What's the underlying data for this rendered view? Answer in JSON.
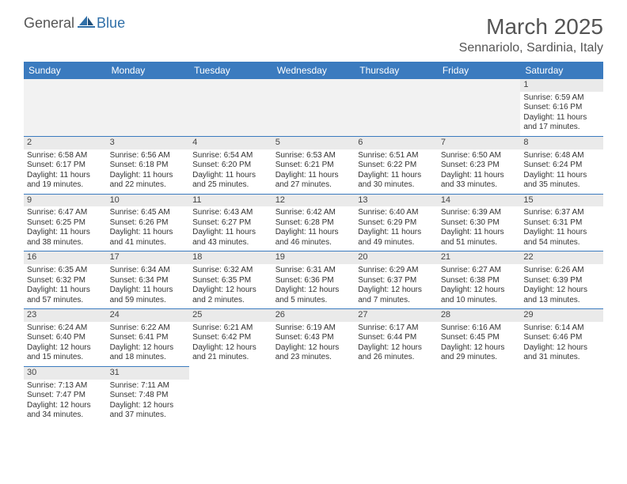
{
  "brand": {
    "part1": "General",
    "part2": "Blue"
  },
  "title": "March 2025",
  "location": "Sennariolo, Sardinia, Italy",
  "header_bg": "#3b7bbf",
  "header_text_color": "#ffffff",
  "daynum_bg": "#eaeaea",
  "border_color": "#3b7bbf",
  "weekdays": [
    "Sunday",
    "Monday",
    "Tuesday",
    "Wednesday",
    "Thursday",
    "Friday",
    "Saturday"
  ],
  "weeks": [
    [
      null,
      null,
      null,
      null,
      null,
      null,
      {
        "n": "1",
        "sunrise": "6:59 AM",
        "sunset": "6:16 PM",
        "daylight": "11 hours and 17 minutes."
      }
    ],
    [
      {
        "n": "2",
        "sunrise": "6:58 AM",
        "sunset": "6:17 PM",
        "daylight": "11 hours and 19 minutes."
      },
      {
        "n": "3",
        "sunrise": "6:56 AM",
        "sunset": "6:18 PM",
        "daylight": "11 hours and 22 minutes."
      },
      {
        "n": "4",
        "sunrise": "6:54 AM",
        "sunset": "6:20 PM",
        "daylight": "11 hours and 25 minutes."
      },
      {
        "n": "5",
        "sunrise": "6:53 AM",
        "sunset": "6:21 PM",
        "daylight": "11 hours and 27 minutes."
      },
      {
        "n": "6",
        "sunrise": "6:51 AM",
        "sunset": "6:22 PM",
        "daylight": "11 hours and 30 minutes."
      },
      {
        "n": "7",
        "sunrise": "6:50 AM",
        "sunset": "6:23 PM",
        "daylight": "11 hours and 33 minutes."
      },
      {
        "n": "8",
        "sunrise": "6:48 AM",
        "sunset": "6:24 PM",
        "daylight": "11 hours and 35 minutes."
      }
    ],
    [
      {
        "n": "9",
        "sunrise": "6:47 AM",
        "sunset": "6:25 PM",
        "daylight": "11 hours and 38 minutes."
      },
      {
        "n": "10",
        "sunrise": "6:45 AM",
        "sunset": "6:26 PM",
        "daylight": "11 hours and 41 minutes."
      },
      {
        "n": "11",
        "sunrise": "6:43 AM",
        "sunset": "6:27 PM",
        "daylight": "11 hours and 43 minutes."
      },
      {
        "n": "12",
        "sunrise": "6:42 AM",
        "sunset": "6:28 PM",
        "daylight": "11 hours and 46 minutes."
      },
      {
        "n": "13",
        "sunrise": "6:40 AM",
        "sunset": "6:29 PM",
        "daylight": "11 hours and 49 minutes."
      },
      {
        "n": "14",
        "sunrise": "6:39 AM",
        "sunset": "6:30 PM",
        "daylight": "11 hours and 51 minutes."
      },
      {
        "n": "15",
        "sunrise": "6:37 AM",
        "sunset": "6:31 PM",
        "daylight": "11 hours and 54 minutes."
      }
    ],
    [
      {
        "n": "16",
        "sunrise": "6:35 AM",
        "sunset": "6:32 PM",
        "daylight": "11 hours and 57 minutes."
      },
      {
        "n": "17",
        "sunrise": "6:34 AM",
        "sunset": "6:34 PM",
        "daylight": "11 hours and 59 minutes."
      },
      {
        "n": "18",
        "sunrise": "6:32 AM",
        "sunset": "6:35 PM",
        "daylight": "12 hours and 2 minutes."
      },
      {
        "n": "19",
        "sunrise": "6:31 AM",
        "sunset": "6:36 PM",
        "daylight": "12 hours and 5 minutes."
      },
      {
        "n": "20",
        "sunrise": "6:29 AM",
        "sunset": "6:37 PM",
        "daylight": "12 hours and 7 minutes."
      },
      {
        "n": "21",
        "sunrise": "6:27 AM",
        "sunset": "6:38 PM",
        "daylight": "12 hours and 10 minutes."
      },
      {
        "n": "22",
        "sunrise": "6:26 AM",
        "sunset": "6:39 PM",
        "daylight": "12 hours and 13 minutes."
      }
    ],
    [
      {
        "n": "23",
        "sunrise": "6:24 AM",
        "sunset": "6:40 PM",
        "daylight": "12 hours and 15 minutes."
      },
      {
        "n": "24",
        "sunrise": "6:22 AM",
        "sunset": "6:41 PM",
        "daylight": "12 hours and 18 minutes."
      },
      {
        "n": "25",
        "sunrise": "6:21 AM",
        "sunset": "6:42 PM",
        "daylight": "12 hours and 21 minutes."
      },
      {
        "n": "26",
        "sunrise": "6:19 AM",
        "sunset": "6:43 PM",
        "daylight": "12 hours and 23 minutes."
      },
      {
        "n": "27",
        "sunrise": "6:17 AM",
        "sunset": "6:44 PM",
        "daylight": "12 hours and 26 minutes."
      },
      {
        "n": "28",
        "sunrise": "6:16 AM",
        "sunset": "6:45 PM",
        "daylight": "12 hours and 29 minutes."
      },
      {
        "n": "29",
        "sunrise": "6:14 AM",
        "sunset": "6:46 PM",
        "daylight": "12 hours and 31 minutes."
      }
    ],
    [
      {
        "n": "30",
        "sunrise": "7:13 AM",
        "sunset": "7:47 PM",
        "daylight": "12 hours and 34 minutes."
      },
      {
        "n": "31",
        "sunrise": "7:11 AM",
        "sunset": "7:48 PM",
        "daylight": "12 hours and 37 minutes."
      },
      null,
      null,
      null,
      null,
      null
    ]
  ],
  "labels": {
    "sunrise": "Sunrise:",
    "sunset": "Sunset:",
    "daylight": "Daylight:"
  }
}
